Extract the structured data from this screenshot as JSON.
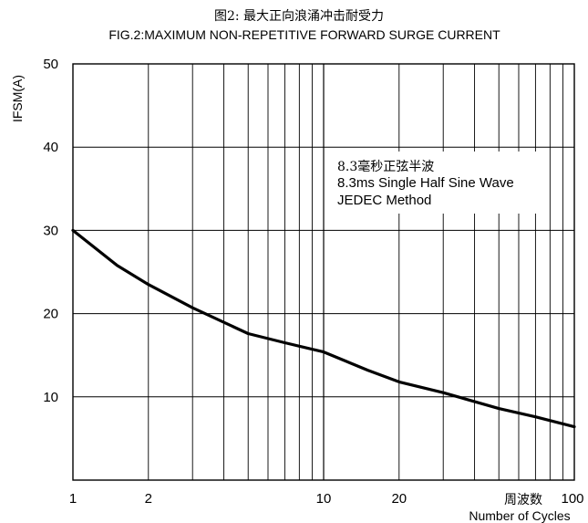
{
  "chart_data": {
    "type": "line",
    "title_cn": "图2: 最大正向浪涌冲击耐受力",
    "title": "FIG.2:MAXIMUM NON-REPETITIVE FORWARD SURGE CURRENT",
    "ylabel": "IFSM(A)",
    "xlabel_cn": "周波数",
    "xlabel": "Number of Cycles",
    "x_scale": "log",
    "xlim": [
      1,
      100
    ],
    "ylim": [
      0,
      50
    ],
    "x_ticks": [
      1,
      2,
      10,
      20,
      100
    ],
    "x_tick_labels": [
      "1",
      "2",
      "10",
      "20",
      "100"
    ],
    "y_ticks": [
      10,
      20,
      30,
      40,
      50
    ],
    "y_tick_labels": [
      "10",
      "20",
      "30",
      "40",
      "50"
    ],
    "grid": true,
    "annotation": {
      "line1": "8.3毫秒正弦半波",
      "line2": "8.3ms Single Half Sine Wave",
      "line3": "JEDEC Method"
    },
    "series": [
      {
        "x": [
          1,
          1.5,
          2,
          3,
          5,
          7,
          10,
          15,
          20,
          30,
          50,
          70,
          100
        ],
        "y": [
          30,
          25.8,
          23.5,
          20.7,
          17.6,
          16.5,
          15.4,
          13.2,
          11.8,
          10.5,
          8.6,
          7.6,
          6.4
        ]
      }
    ]
  }
}
